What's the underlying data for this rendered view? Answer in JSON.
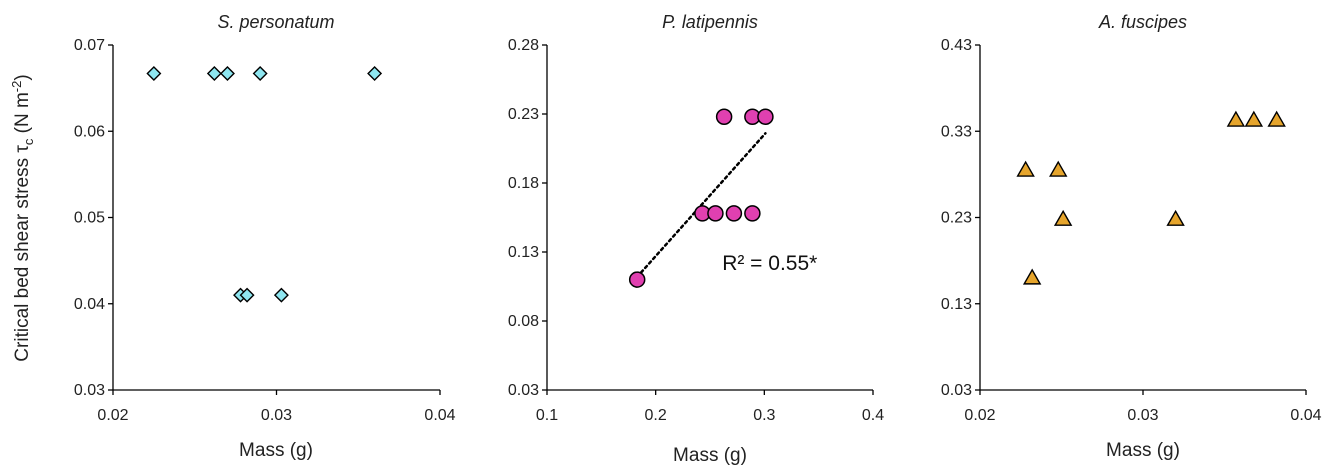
{
  "y_axis_label": {
    "main": "Critical bed shear stress τ",
    "subscript": "c",
    "unit_open": " (N m",
    "unit_sup": "-2",
    "unit_close": ")"
  },
  "chart_data": [
    {
      "type": "scatter",
      "title": "S. personatum",
      "xlabel": "Mass (g)",
      "xlim": [
        0.02,
        0.04
      ],
      "ylim": [
        0.03,
        0.07
      ],
      "xticks": [
        "0.02",
        "0.03",
        "0.04"
      ],
      "yticks": [
        "0.03",
        "0.04",
        "0.05",
        "0.06",
        "0.07"
      ],
      "marker": "diamond",
      "marker_color": "#8EE6F0",
      "points": [
        {
          "x": 0.0225,
          "y": 0.0667
        },
        {
          "x": 0.0262,
          "y": 0.0667
        },
        {
          "x": 0.027,
          "y": 0.0667
        },
        {
          "x": 0.029,
          "y": 0.0667
        },
        {
          "x": 0.036,
          "y": 0.0667
        },
        {
          "x": 0.0278,
          "y": 0.041
        },
        {
          "x": 0.0282,
          "y": 0.041
        },
        {
          "x": 0.0303,
          "y": 0.041
        }
      ]
    },
    {
      "type": "scatter",
      "title": "P. latipennis",
      "xlabel": "Mass (g)",
      "xlim": [
        0.1,
        0.4
      ],
      "ylim": [
        0.03,
        0.28
      ],
      "xticks": [
        "0.1",
        "0.2",
        "0.3",
        "0.4"
      ],
      "yticks": [
        "0.03",
        "0.08",
        "0.13",
        "0.18",
        "0.23",
        "0.28"
      ],
      "marker": "circle",
      "marker_color": "#E040B0",
      "points": [
        {
          "x": 0.183,
          "y": 0.11
        },
        {
          "x": 0.243,
          "y": 0.158
        },
        {
          "x": 0.255,
          "y": 0.158
        },
        {
          "x": 0.272,
          "y": 0.158
        },
        {
          "x": 0.289,
          "y": 0.158
        },
        {
          "x": 0.263,
          "y": 0.228
        },
        {
          "x": 0.289,
          "y": 0.228
        },
        {
          "x": 0.301,
          "y": 0.228
        }
      ],
      "trendline": {
        "x": [
          0.183,
          0.301
        ],
        "y": [
          0.112,
          0.216
        ]
      },
      "annotation": {
        "text": "R² = 0.55*",
        "x": 0.305,
        "y": 0.122
      }
    },
    {
      "type": "scatter",
      "title": "A. fuscipes",
      "xlabel": "Mass (g)",
      "xlim": [
        0.02,
        0.04
      ],
      "ylim": [
        0.03,
        0.43
      ],
      "xticks": [
        "0.02",
        "0.03",
        "0.04"
      ],
      "yticks": [
        "0.03",
        "0.13",
        "0.23",
        "0.33",
        "0.43"
      ],
      "marker": "triangle",
      "marker_color": "#E6A52C",
      "points": [
        {
          "x": 0.0228,
          "y": 0.285
        },
        {
          "x": 0.0248,
          "y": 0.285
        },
        {
          "x": 0.0232,
          "y": 0.16
        },
        {
          "x": 0.0251,
          "y": 0.228
        },
        {
          "x": 0.032,
          "y": 0.228
        },
        {
          "x": 0.0357,
          "y": 0.343
        },
        {
          "x": 0.0368,
          "y": 0.343
        },
        {
          "x": 0.0382,
          "y": 0.343
        }
      ]
    }
  ]
}
